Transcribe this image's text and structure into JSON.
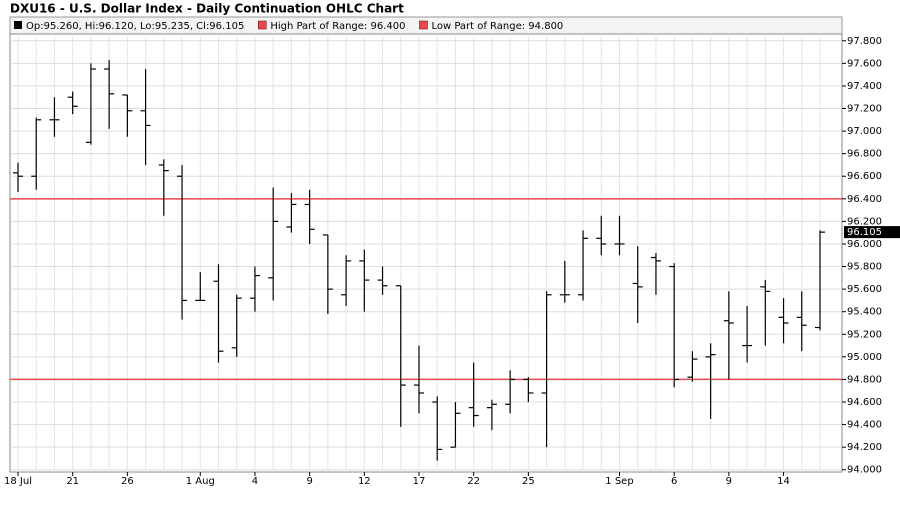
{
  "chart_data": {
    "type": "ohlc",
    "title": "DXU16 - U.S. Dollar Index - Daily Continuation OHLC Chart",
    "legend": "Op:95.260, Hi:96.120, Lo:95.235, Cl:96.105",
    "reference_lines": [
      {
        "label": "High Part of Range: 96.400",
        "value": 96.4,
        "color": "#e8484e"
      },
      {
        "label": "Low Part of Range: 94.800",
        "value": 94.8,
        "color": "#e8484e"
      }
    ],
    "categories": [
      "18 Jul",
      null,
      null,
      "21",
      null,
      null,
      "26",
      null,
      null,
      null,
      "1 Aug",
      null,
      null,
      "4",
      null,
      null,
      "9",
      null,
      null,
      "12",
      null,
      null,
      "17",
      null,
      null,
      "22",
      null,
      null,
      "25",
      null,
      null,
      null,
      null,
      "1 Sep",
      null,
      null,
      "6",
      null,
      null,
      "9",
      null,
      null,
      "14",
      null,
      null
    ],
    "open": [
      96.63,
      96.6,
      97.1,
      97.3,
      96.9,
      97.55,
      97.32,
      97.18,
      96.7,
      96.6,
      95.5,
      95.67,
      95.08,
      95.52,
      95.7,
      96.15,
      96.35,
      96.08,
      95.55,
      95.85,
      95.68,
      95.63,
      94.75,
      94.6,
      94.2,
      94.55,
      94.55,
      94.58,
      94.8,
      94.68,
      95.55,
      95.55,
      96.05,
      96.0,
      95.65,
      95.88,
      95.8,
      94.82,
      95.0,
      95.32,
      95.1,
      95.62,
      95.35,
      95.35,
      95.26
    ],
    "high": [
      96.72,
      97.12,
      97.3,
      97.35,
      97.6,
      97.63,
      97.32,
      97.55,
      96.75,
      96.7,
      95.75,
      95.82,
      95.55,
      95.8,
      96.5,
      96.45,
      96.48,
      96.08,
      95.9,
      95.95,
      95.8,
      95.63,
      95.1,
      94.65,
      94.6,
      94.95,
      94.62,
      94.88,
      94.82,
      95.58,
      95.85,
      96.12,
      96.25,
      96.25,
      95.98,
      95.92,
      95.83,
      95.05,
      95.12,
      95.58,
      95.45,
      95.68,
      95.52,
      95.58,
      96.12
    ],
    "low": [
      96.46,
      96.48,
      96.95,
      97.15,
      96.88,
      97.02,
      96.95,
      96.7,
      96.25,
      95.33,
      95.5,
      94.95,
      95.0,
      95.4,
      95.5,
      96.1,
      96.0,
      95.38,
      95.45,
      95.4,
      95.55,
      94.38,
      94.5,
      94.08,
      94.2,
      94.38,
      94.35,
      94.5,
      94.6,
      94.2,
      95.48,
      95.5,
      95.9,
      95.9,
      95.3,
      95.55,
      94.73,
      94.78,
      94.45,
      94.8,
      94.95,
      95.1,
      95.12,
      95.05,
      95.235
    ],
    "close": [
      96.6,
      97.1,
      97.1,
      97.22,
      97.55,
      97.33,
      97.18,
      97.05,
      96.65,
      95.5,
      95.5,
      95.05,
      95.52,
      95.72,
      96.2,
      96.35,
      96.13,
      95.6,
      95.85,
      95.68,
      95.63,
      94.75,
      94.68,
      94.18,
      94.5,
      94.48,
      94.58,
      94.8,
      94.68,
      95.55,
      95.55,
      96.05,
      96.0,
      96.0,
      95.62,
      95.85,
      94.8,
      94.98,
      95.02,
      95.3,
      95.1,
      95.58,
      95.3,
      95.28,
      96.105
    ],
    "color": "#000000",
    "ylim": [
      93.98,
      97.86
    ],
    "yticks": [
      {
        "value": 94.0,
        "label": "94.000"
      },
      {
        "value": 94.2,
        "label": "94.200"
      },
      {
        "value": 94.4,
        "label": "94.400"
      },
      {
        "value": 94.6,
        "label": "94.600"
      },
      {
        "value": 94.8,
        "label": "94.800"
      },
      {
        "value": 95.0,
        "label": "95.000"
      },
      {
        "value": 95.2,
        "label": "95.200"
      },
      {
        "value": 95.4,
        "label": "95.400"
      },
      {
        "value": 95.6,
        "label": "95.600"
      },
      {
        "value": 95.8,
        "label": "95.800"
      },
      {
        "value": 96.0,
        "label": "96.000"
      },
      {
        "value": 96.2,
        "label": "96.200"
      },
      {
        "value": 96.4,
        "label": "96.400"
      },
      {
        "value": 96.6,
        "label": "96.600"
      },
      {
        "value": 96.8,
        "label": "96.800"
      },
      {
        "value": 97.0,
        "label": "97.000"
      },
      {
        "value": 97.2,
        "label": "97.200"
      },
      {
        "value": 97.4,
        "label": "97.400"
      },
      {
        "value": 97.6,
        "label": "97.600"
      },
      {
        "value": 97.8,
        "label": "97.800"
      }
    ],
    "grid": true
  }
}
